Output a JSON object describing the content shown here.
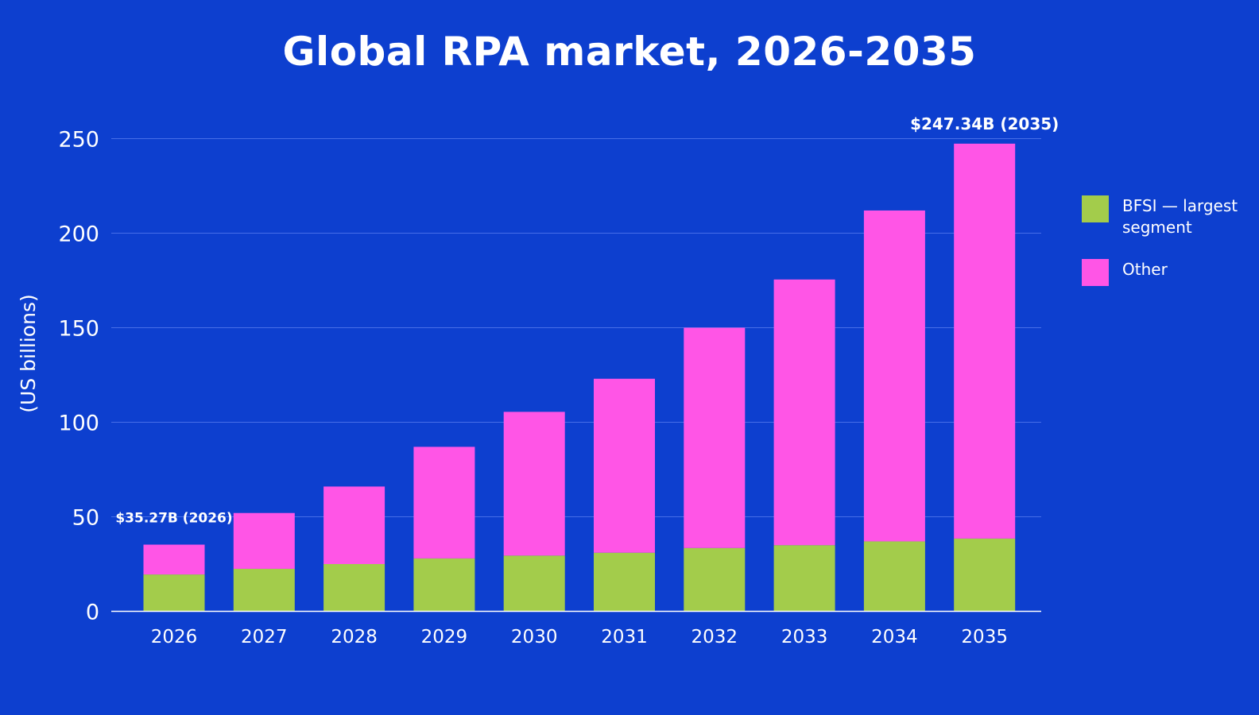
{
  "chart_data": {
    "type": "bar",
    "stacked": true,
    "title": "Global RPA market, 2026-2035",
    "ylabel": "(US billions)",
    "xlabel": "",
    "ylim": [
      0,
      260
    ],
    "yticks": [
      0,
      50,
      100,
      150,
      200,
      250
    ],
    "grid": true,
    "legend_position": "right",
    "categories": [
      "2026",
      "2027",
      "2028",
      "2029",
      "2030",
      "2031",
      "2032",
      "2033",
      "2034",
      "2035"
    ],
    "series": [
      {
        "name": "BFSI — largest segment",
        "color": "#a3cc4b",
        "values": [
          19.5,
          22.5,
          25,
          28,
          29.5,
          31,
          33.5,
          35,
          37,
          38.5
        ]
      },
      {
        "name": "Other",
        "color": "#ff55e6",
        "values": [
          15.77,
          29.5,
          41,
          59,
          76,
          92,
          116.5,
          140.5,
          175,
          208.84
        ]
      }
    ],
    "annotations": [
      {
        "category": "2026",
        "text": "$35.27B (2026)"
      },
      {
        "category": "2035",
        "text": "$247.34B (2035)"
      }
    ]
  }
}
